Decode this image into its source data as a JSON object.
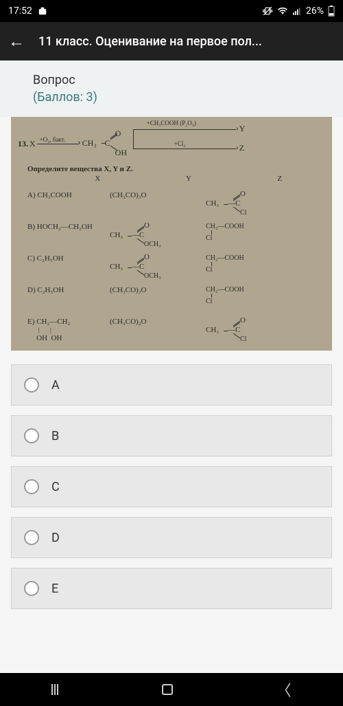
{
  "status": {
    "time": "17:52",
    "battery_pct": "26%"
  },
  "header": {
    "title": "11 класс. Оценивание на первое пол..."
  },
  "question": {
    "label": "Вопрос",
    "points": "(Баллов: 3)"
  },
  "chem": {
    "qnum": "13.",
    "x": "X",
    "arr1_label": "+O₂, бакт.",
    "acetic": {
      "ch3": "CH₃",
      "c": "C",
      "o": "O",
      "oh": "OH"
    },
    "branch_top_label": "+CH₃COOH (P₂O₅)",
    "branch_top_target": "Y",
    "branch_bot_label": "+Cl₂",
    "branch_bot_target": "Z",
    "determine": "Определите вещества X, Y и Z.",
    "cols": {
      "x": "X",
      "y": "Y",
      "z": "Z"
    },
    "rows": [
      {
        "label": "A) CH₃COOH",
        "y_text": "(CH₃CO)₂O",
        "z_struct": {
          "left": "CH₃",
          "top": "O",
          "bot": "Cl"
        }
      },
      {
        "label": "B) HOCH₂—CH₂OH",
        "y_struct": {
          "left": "CH₃",
          "top": "O",
          "bot": "OCH₃"
        },
        "z_frac": {
          "top": "CH₂—COOH",
          "bot": "Cl"
        }
      },
      {
        "label": "C) C₂H₅OH",
        "y_struct": {
          "left": "CH₃",
          "top": "O",
          "bot": "OCH₃"
        },
        "z_frac": {
          "top": "CH₂—COOH",
          "bot": "Cl"
        }
      },
      {
        "label": "D) C₂H₅OH",
        "y_text": "(CH₃CO)₂O",
        "z_frac": {
          "top": "CH₂—COOH",
          "bot": "Cl"
        }
      },
      {
        "label": "E) CH₂—CH₂ / OH OH",
        "y_text": "(CH₃CO)₂O",
        "z_struct": {
          "left": "CH₃",
          "top": "O",
          "bot": "Cl"
        }
      }
    ]
  },
  "options": [
    "A",
    "B",
    "C",
    "D",
    "E"
  ],
  "colors": {
    "status_bg": "#000000",
    "header_bg": "#212121",
    "question_bg": "#eef2f2",
    "points_color": "#3a7a7a",
    "chem_bg": "#b0a58e",
    "option_bg": "#e8e8e8",
    "option_border": "#d0d0d0"
  }
}
